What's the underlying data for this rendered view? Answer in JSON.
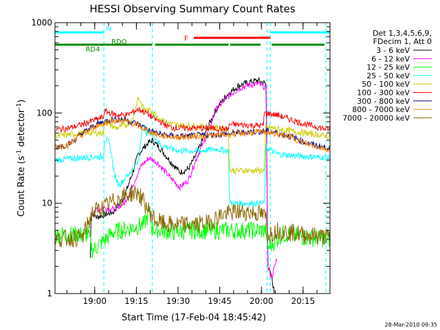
{
  "chart_data": {
    "type": "line",
    "title": "HESSI Observing Summary Count Rates",
    "xlabel": "Start Time (17-Feb-04 18:45:42)",
    "ylabel_main": "Count Rate (s",
    "ylabel_sup1": "-1",
    "ylabel_mid": " detector",
    "ylabel_sup2": "-1",
    "ylabel_end": ")",
    "x_unit": "minutes after 18:45:42",
    "xlim": [
      0,
      99
    ],
    "ylim": [
      1,
      1000
    ],
    "yscale": "log",
    "x_ticks": [
      {
        "x": 14.3,
        "label": "19:00"
      },
      {
        "x": 29.3,
        "label": "19:15"
      },
      {
        "x": 44.3,
        "label": "19:30"
      },
      {
        "x": 59.3,
        "label": "19:45"
      },
      {
        "x": 74.3,
        "label": "20:00"
      },
      {
        "x": 89.3,
        "label": "20:15"
      }
    ],
    "y_ticks": [
      {
        "y": 1,
        "label": "1"
      },
      {
        "y": 10,
        "label": "10"
      },
      {
        "y": 100,
        "label": "100"
      },
      {
        "y": 1000,
        "label": "1000"
      }
    ],
    "legend_header": [
      "Det 1,3,4,5,6,9,",
      "FDecim 1, Att 0"
    ],
    "legend_position": "outside-right",
    "timestamp": "28-Mar-2010 09:35",
    "vlines": [
      0,
      17.6,
      35,
      76.3,
      77.5,
      97.5
    ],
    "flag_bars": [
      {
        "label": "N",
        "color": "#00ffff",
        "y": 780,
        "segments": [
          [
            0,
            17.6
          ],
          [
            77.5,
            99
          ]
        ]
      },
      {
        "label": "F",
        "color": "#ff0000",
        "y": 680,
        "segments": [
          [
            50,
            77.5
          ]
        ]
      },
      {
        "label": "RDO",
        "color": "#008800",
        "y": 570,
        "segments": [
          [
            0,
            35
          ],
          [
            36,
            62.5
          ],
          [
            63,
            74
          ],
          [
            78,
            97
          ]
        ]
      },
      {
        "label": "RD4",
        "color": "#008800",
        "y": 570,
        "segments": []
      }
    ],
    "series": [
      {
        "name": "3 - 6 keV",
        "color": "#000000",
        "points": [
          [
            12.5,
            1
          ],
          [
            13,
            8
          ],
          [
            15,
            7
          ],
          [
            18,
            7.5
          ],
          [
            21,
            8
          ],
          [
            25,
            12
          ],
          [
            28,
            22
          ],
          [
            30,
            35
          ],
          [
            33,
            45
          ],
          [
            35,
            50
          ],
          [
            38,
            40
          ],
          [
            42,
            28
          ],
          [
            45,
            22
          ],
          [
            48,
            24
          ],
          [
            51,
            35
          ],
          [
            55,
            70
          ],
          [
            58,
            110
          ],
          [
            62,
            160
          ],
          [
            66,
            200
          ],
          [
            70,
            220
          ],
          [
            73,
            230
          ],
          [
            76,
            210
          ],
          [
            76.6,
            2
          ],
          [
            78,
            1.5
          ],
          [
            79,
            1
          ]
        ]
      },
      {
        "name": "6 - 12 keV",
        "color": "#ff00ff",
        "points": [
          [
            13.5,
            8
          ],
          [
            17.5,
            9
          ],
          [
            21,
            8.5
          ],
          [
            25,
            10
          ],
          [
            28,
            16
          ],
          [
            31,
            26
          ],
          [
            34,
            32
          ],
          [
            37,
            28
          ],
          [
            41,
            20
          ],
          [
            45,
            15
          ],
          [
            48,
            18
          ],
          [
            51,
            32
          ],
          [
            55,
            60
          ],
          [
            58,
            110
          ],
          [
            62,
            150
          ],
          [
            66,
            185
          ],
          [
            70,
            205
          ],
          [
            73,
            210
          ],
          [
            76,
            190
          ],
          [
            76.6,
            2
          ],
          [
            78,
            1.5
          ],
          [
            80,
            2.5
          ]
        ]
      },
      {
        "name": "12 - 25 keV",
        "color": "#00ff00",
        "points": [
          [
            0,
            4.5
          ],
          [
            12,
            4.5
          ],
          [
            13.5,
            3
          ],
          [
            17.5,
            3.8
          ],
          [
            21,
            4.8
          ],
          [
            26,
            5.2
          ],
          [
            32,
            5.8
          ],
          [
            34,
            8
          ],
          [
            35,
            5.2
          ],
          [
            42,
            4.8
          ],
          [
            50,
            5
          ],
          [
            60,
            5
          ],
          [
            70,
            5
          ],
          [
            76,
            5
          ],
          [
            76.6,
            3.2
          ],
          [
            82,
            4.6
          ],
          [
            90,
            4.2
          ],
          [
            99,
            4
          ]
        ]
      },
      {
        "name": "25 - 50 keV",
        "color": "#00ffff",
        "points": [
          [
            0,
            30
          ],
          [
            10,
            32
          ],
          [
            17.5,
            33
          ],
          [
            17.8,
            50
          ],
          [
            19,
            50
          ],
          [
            20,
            40
          ],
          [
            21.5,
            20
          ],
          [
            23,
            16
          ],
          [
            26,
            20
          ],
          [
            28,
            24
          ],
          [
            30,
            28
          ],
          [
            31.5,
            80
          ],
          [
            33,
            60
          ],
          [
            35,
            60
          ],
          [
            38,
            44
          ],
          [
            45,
            38
          ],
          [
            52,
            38
          ],
          [
            58,
            40
          ],
          [
            62.5,
            38
          ],
          [
            62.8,
            10
          ],
          [
            75.5,
            10
          ],
          [
            75.8,
            42
          ],
          [
            80,
            35
          ],
          [
            90,
            33
          ],
          [
            99,
            32
          ]
        ]
      },
      {
        "name": "50 - 100 keV",
        "color": "#cccc00",
        "points": [
          [
            0,
            55
          ],
          [
            10,
            60
          ],
          [
            17.5,
            60
          ],
          [
            17.8,
            80
          ],
          [
            22,
            68
          ],
          [
            26,
            75
          ],
          [
            28,
            85
          ],
          [
            30,
            150
          ],
          [
            32,
            110
          ],
          [
            35,
            105
          ],
          [
            38,
            85
          ],
          [
            42,
            75
          ],
          [
            48,
            72
          ],
          [
            55,
            70
          ],
          [
            62.5,
            65
          ],
          [
            62.8,
            23
          ],
          [
            75.5,
            23
          ],
          [
            75.8,
            70
          ],
          [
            82,
            65
          ],
          [
            90,
            60
          ],
          [
            99,
            55
          ]
        ]
      },
      {
        "name": "100 - 300 keV",
        "color": "#ff0000",
        "points": [
          [
            0,
            65
          ],
          [
            5,
            68
          ],
          [
            10,
            75
          ],
          [
            15,
            85
          ],
          [
            17.5,
            90
          ],
          [
            17.8,
            105
          ],
          [
            22,
            95
          ],
          [
            26,
            95
          ],
          [
            30,
            110
          ],
          [
            33,
            100
          ],
          [
            36,
            85
          ],
          [
            38,
            80
          ],
          [
            41,
            70
          ],
          [
            44,
            68
          ],
          [
            48,
            68
          ],
          [
            55,
            68
          ],
          [
            62.5,
            66
          ],
          [
            62.8,
            75
          ],
          [
            75,
            72
          ],
          [
            75.3,
            100
          ],
          [
            80,
            95
          ],
          [
            90,
            75
          ],
          [
            99,
            65
          ]
        ]
      },
      {
        "name": "300 - 800 keV",
        "color": "#000088",
        "points": [
          [
            0,
            42
          ],
          [
            5,
            45
          ],
          [
            10,
            60
          ],
          [
            15,
            75
          ],
          [
            20,
            85
          ],
          [
            25,
            85
          ],
          [
            30,
            75
          ],
          [
            34,
            64
          ],
          [
            38,
            58
          ],
          [
            44,
            55
          ],
          [
            50,
            56
          ],
          [
            60,
            58
          ],
          [
            70,
            62
          ],
          [
            76,
            63
          ],
          [
            80,
            60
          ],
          [
            85,
            55
          ],
          [
            90,
            47
          ],
          [
            95,
            43
          ],
          [
            99,
            40
          ]
        ]
      },
      {
        "name": "800 - 7000 keV",
        "color": "#ff8800",
        "points": [
          [
            0,
            42
          ],
          [
            5,
            44
          ],
          [
            10,
            58
          ],
          [
            15,
            72
          ],
          [
            20,
            82
          ],
          [
            25,
            82
          ],
          [
            30,
            72
          ],
          [
            34,
            62
          ],
          [
            38,
            56
          ],
          [
            44,
            54
          ],
          [
            50,
            55
          ],
          [
            60,
            57
          ],
          [
            70,
            60
          ],
          [
            76,
            62
          ],
          [
            80,
            58
          ],
          [
            85,
            54
          ],
          [
            90,
            46
          ],
          [
            95,
            42
          ],
          [
            99,
            39
          ]
        ]
      },
      {
        "name": "7000 - 20000 keV",
        "color": "#886600",
        "points": [
          [
            0,
            4
          ],
          [
            10,
            4.2
          ],
          [
            13.5,
            8
          ],
          [
            17.5,
            9
          ],
          [
            22,
            11
          ],
          [
            28,
            13
          ],
          [
            30,
            13
          ],
          [
            33,
            9
          ],
          [
            36,
            6.5
          ],
          [
            40,
            5.8
          ],
          [
            45,
            5.8
          ],
          [
            50,
            5.8
          ],
          [
            55,
            6
          ],
          [
            60,
            7.5
          ],
          [
            65,
            8
          ],
          [
            70,
            8
          ],
          [
            74,
            7.6
          ],
          [
            76,
            7
          ],
          [
            76.6,
            4.5
          ],
          [
            80,
            5
          ],
          [
            90,
            4.5
          ],
          [
            99,
            4.2
          ]
        ]
      }
    ]
  }
}
